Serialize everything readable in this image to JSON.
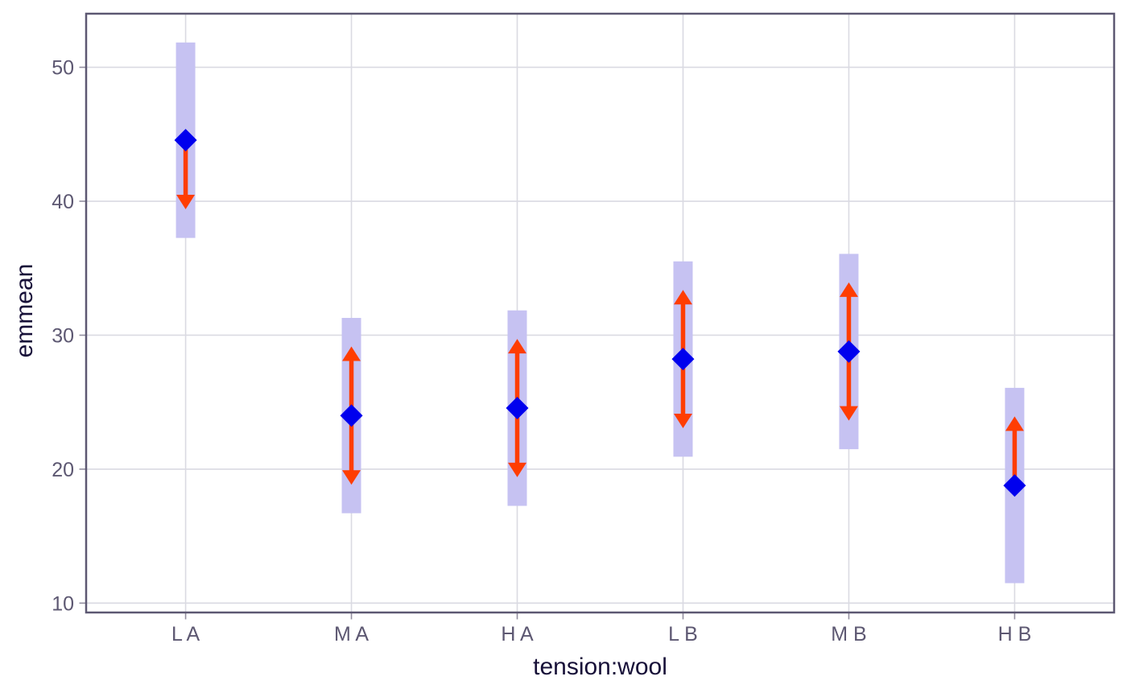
{
  "chart_data": {
    "type": "scatter",
    "title": "",
    "xlabel": "tension:wool",
    "ylabel": "emmean",
    "categories": [
      "L A",
      "M A",
      "H A",
      "L B",
      "M B",
      "H B"
    ],
    "series": [
      {
        "name": "emmean",
        "values": [
          44.56,
          24.0,
          24.56,
          28.22,
          28.78,
          18.78
        ]
      },
      {
        "name": "lower_CL",
        "values": [
          37.26,
          16.71,
          17.26,
          20.93,
          21.49,
          11.49
        ]
      },
      {
        "name": "upper_CL",
        "values": [
          51.85,
          31.29,
          31.85,
          35.51,
          36.07,
          26.07
        ]
      },
      {
        "name": "comparison_arrow_up_tip",
        "values": [
          null,
          29.16,
          29.72,
          33.38,
          33.94,
          23.94
        ]
      },
      {
        "name": "comparison_arrow_down_tip",
        "values": [
          39.4,
          18.84,
          19.4,
          23.06,
          23.62,
          null
        ]
      }
    ],
    "yticks": [
      10,
      20,
      30,
      40,
      50
    ],
    "ytick_labels": [
      "10",
      "20",
      "30",
      "40",
      "50"
    ],
    "ylim": [
      9.3,
      54.0
    ],
    "xlim": [
      0.4,
      6.6
    ],
    "grid": "major-only",
    "legend": false,
    "marker": "diamond"
  },
  "style": {
    "ci_bar_color": "#c6c2f2",
    "point_color": "#0000ee",
    "arrow_color": "#ff3d02",
    "gridline_color": "#dadae2",
    "panel_border_color": "#5d5872",
    "tick_mark_color": "#938fa0",
    "tick_text_color": "#5d5872",
    "axis_title_color": "#171038",
    "background_color": "#ffffff"
  }
}
